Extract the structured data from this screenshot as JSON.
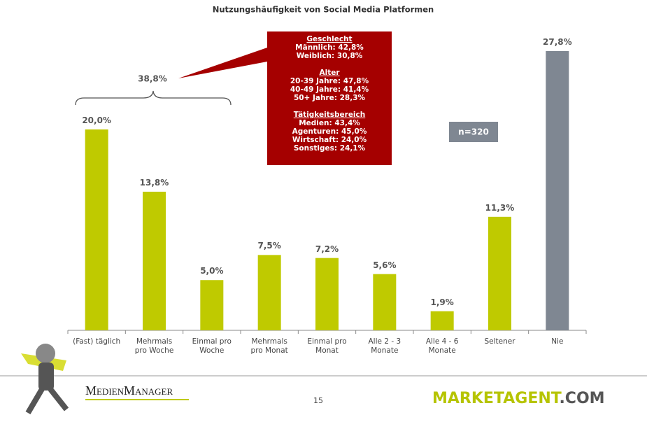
{
  "chart_data": {
    "type": "bar",
    "title": "Nutzungshäufigkeit von Social Media Platformen",
    "categories": [
      "(Fast) täglich",
      "Mehrmals\npro Woche",
      "Einmal pro\nWoche",
      "Mehrmals\npro Monat",
      "Einmal pro\nMonat",
      "Alle 2 - 3\nMonate",
      "Alle 4 - 6\nMonate",
      "Seltener",
      "Nie"
    ],
    "values": [
      20.0,
      13.8,
      5.0,
      7.5,
      7.2,
      5.6,
      1.9,
      11.3,
      27.8
    ],
    "value_labels": [
      "20,0%",
      "13,8%",
      "5,0%",
      "7,5%",
      "7,2%",
      "5,6%",
      "1,9%",
      "11,3%",
      "27,8%"
    ],
    "colors": [
      "#bfca00",
      "#bfca00",
      "#bfca00",
      "#bfca00",
      "#bfca00",
      "#bfca00",
      "#bfca00",
      "#bfca00",
      "#7f8792"
    ],
    "annotations": {
      "brace_label": "38,8%",
      "sample": "n=320",
      "callout": [
        {
          "heading": "Geschlecht",
          "lines": [
            "Männlich: 42,8%",
            "Weiblich: 30,8%"
          ]
        },
        {
          "heading": "Alter",
          "lines": [
            "20-39 Jahre: 47,8%",
            "40-49 Jahre: 41,4%",
            "50+ Jahre: 28,3%"
          ]
        },
        {
          "heading": "Tätigkeitsbereich",
          "lines": [
            "Medien: 43,4%",
            "Agenturen: 45,0%",
            "Wirtschaft: 24,0%",
            "Sonstiges: 24,1%"
          ]
        }
      ]
    }
  },
  "footer": {
    "page": "15",
    "logo_left": "MedienManager",
    "logo_right": [
      "MARKETAGENT",
      ".COM"
    ]
  }
}
